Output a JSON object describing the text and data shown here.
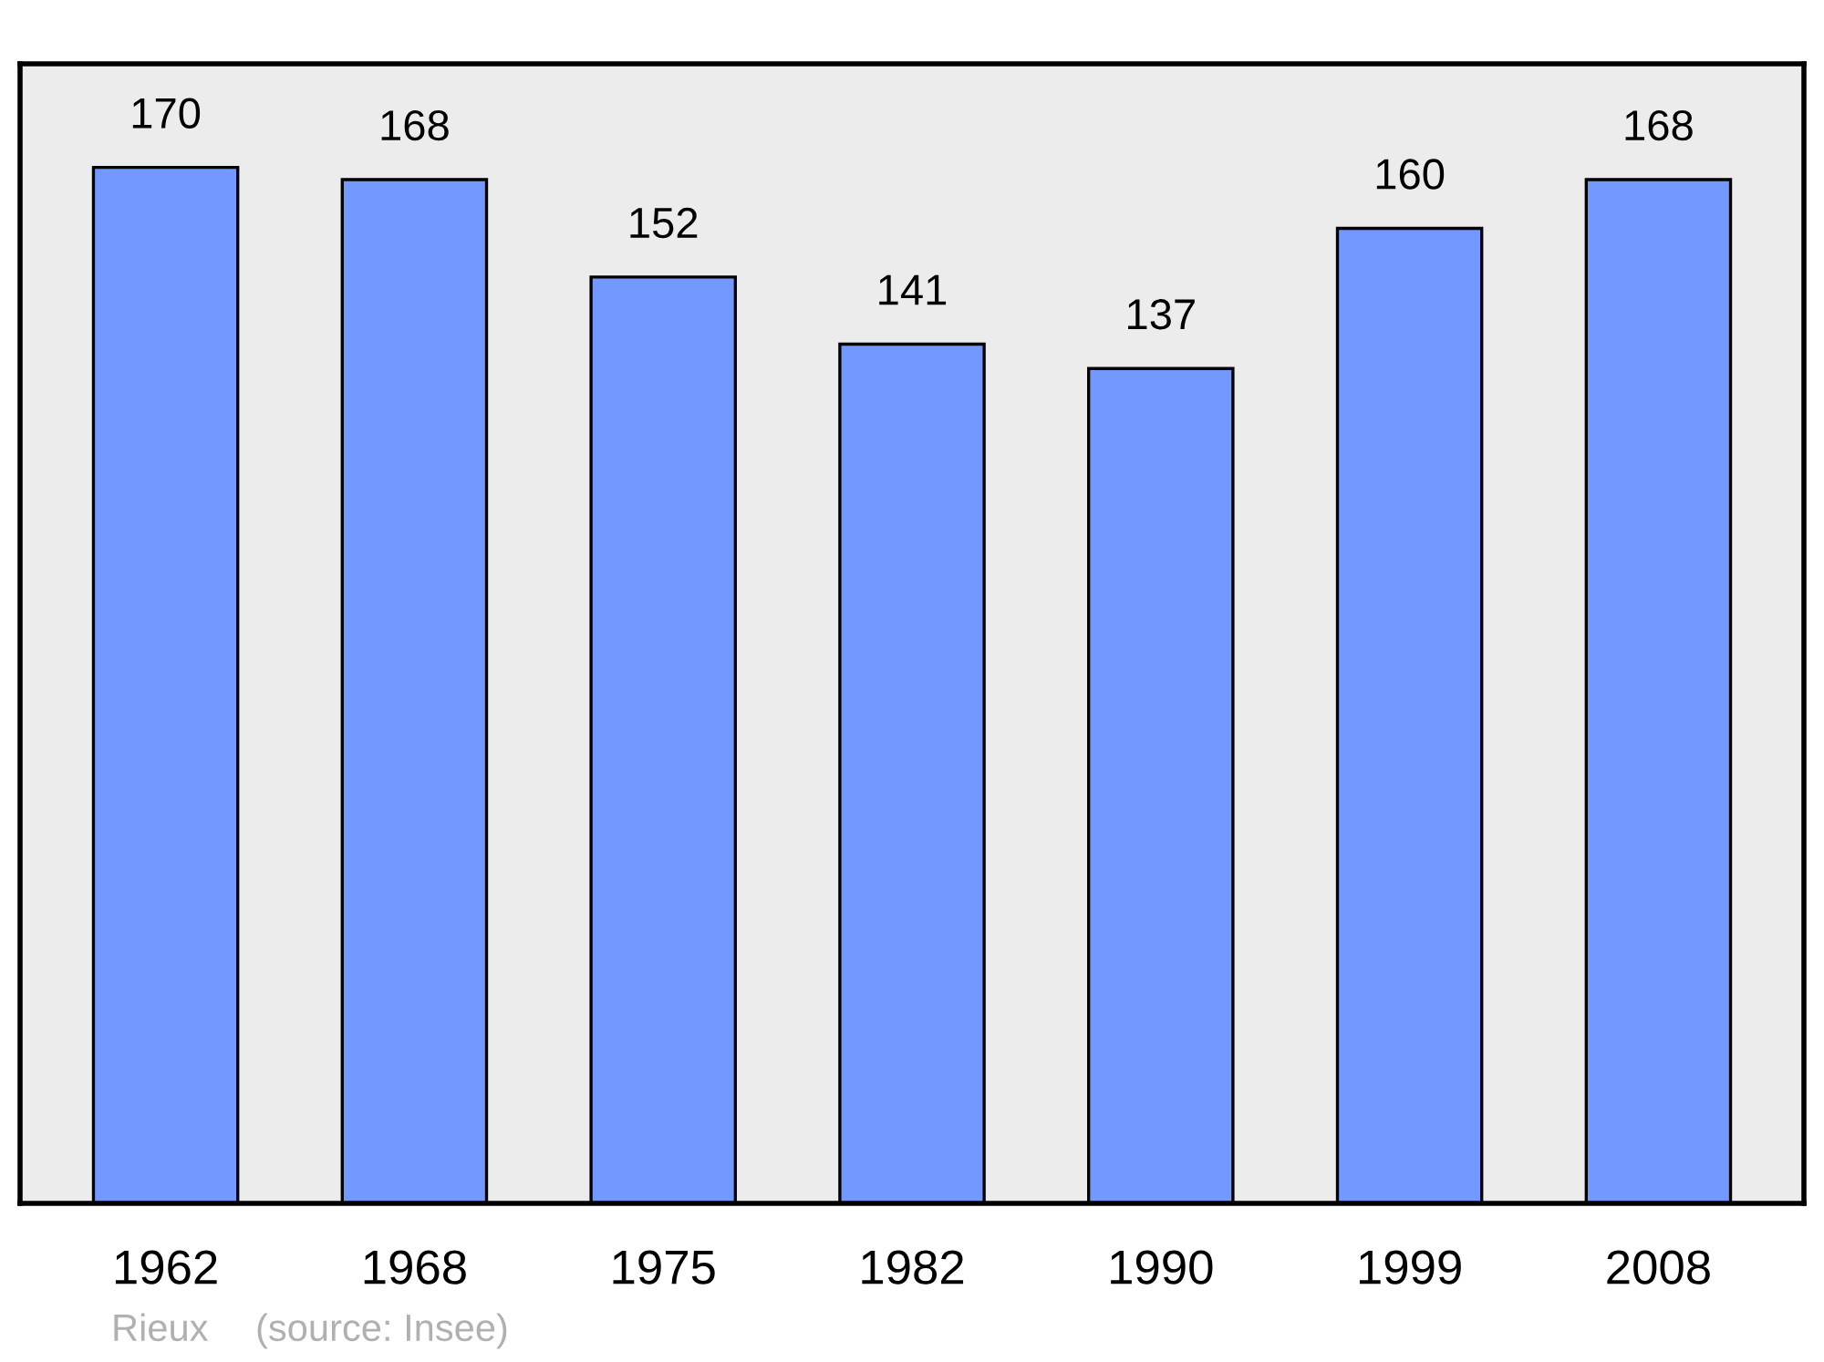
{
  "chart_data": {
    "type": "bar",
    "categories": [
      "1962",
      "1968",
      "1975",
      "1982",
      "1990",
      "1999",
      "2008"
    ],
    "values": [
      170,
      168,
      152,
      141,
      137,
      160,
      168
    ],
    "color": "#7399ff",
    "ylim": [
      0,
      187
    ],
    "tick_labels": "x",
    "data_labels": true,
    "grid": false,
    "annotations": [
      "Rieux",
      "(source: Insee)"
    ]
  }
}
